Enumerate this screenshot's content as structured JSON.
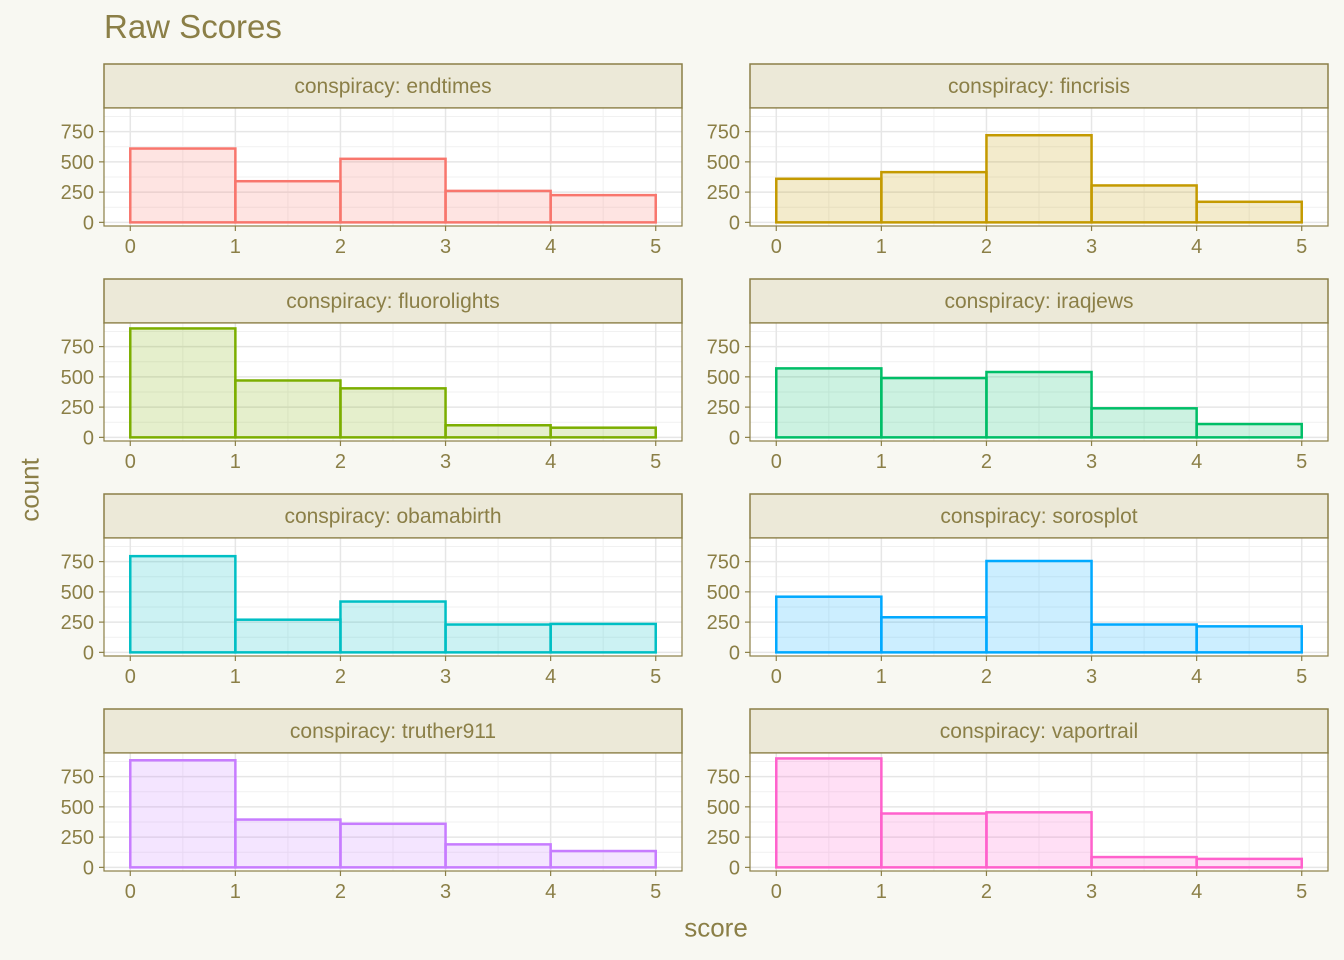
{
  "title": "Raw Scores",
  "xlabel": "score",
  "ylabel": "count",
  "colors": {
    "background": "#f8f8f2",
    "strip_fill": "#ece9d8",
    "strip_border": "#8b7f47",
    "text": "#8b7f47",
    "grid": "#e6e6e6"
  },
  "chart_data": {
    "type": "bar",
    "facet_prefix": "conspiracy: ",
    "x_ticks": [
      0,
      1,
      2,
      3,
      4,
      5
    ],
    "y_ticks": [
      0,
      250,
      500,
      750
    ],
    "xlim": [
      -0.25,
      5.25
    ],
    "ylim": [
      -30,
      945
    ],
    "bin_edges": [
      0,
      1,
      2,
      3,
      4,
      5
    ],
    "panels": [
      {
        "name": "endtimes",
        "color": "#f8766d",
        "values": [
          610,
          340,
          525,
          260,
          225
        ]
      },
      {
        "name": "fincrisis",
        "color": "#c49a00",
        "values": [
          360,
          415,
          720,
          305,
          170
        ]
      },
      {
        "name": "fluorolights",
        "color": "#7cae00",
        "values": [
          900,
          470,
          405,
          100,
          80
        ]
      },
      {
        "name": "iraqjews",
        "color": "#00be67",
        "values": [
          570,
          490,
          540,
          240,
          110
        ]
      },
      {
        "name": "obamabirth",
        "color": "#00bfc4",
        "values": [
          795,
          270,
          420,
          230,
          235
        ]
      },
      {
        "name": "sorosplot",
        "color": "#00a9ff",
        "values": [
          460,
          290,
          755,
          230,
          215
        ]
      },
      {
        "name": "truther911",
        "color": "#c77cff",
        "values": [
          885,
          395,
          360,
          190,
          135
        ]
      },
      {
        "name": "vaportrail",
        "color": "#ff61cc",
        "values": [
          900,
          445,
          455,
          85,
          70
        ]
      }
    ]
  }
}
